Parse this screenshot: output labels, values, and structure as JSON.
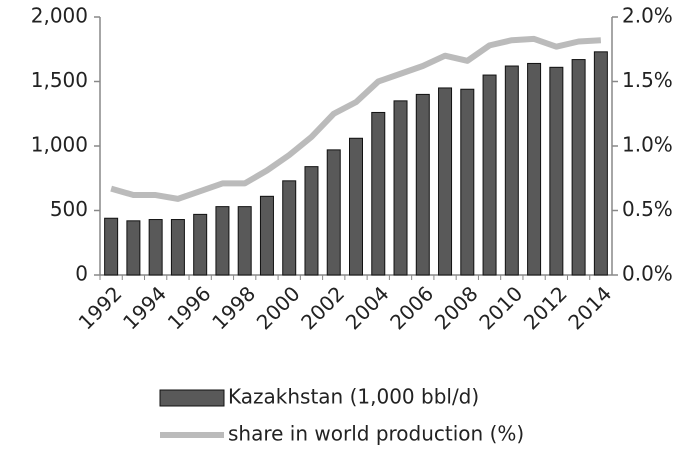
{
  "chart_data": {
    "type": "bar",
    "categories": [
      "1992",
      null,
      "1994",
      null,
      "1996",
      null,
      "1998",
      null,
      "2000",
      null,
      "2002",
      null,
      "2004",
      null,
      "2006",
      null,
      "2008",
      null,
      "2010",
      null,
      "2012",
      null,
      "2014"
    ],
    "series": [
      {
        "name": "Kazakhstan (1,000 bbl/d)",
        "type": "bar",
        "color": "#595959",
        "values": [
          440,
          420,
          430,
          430,
          470,
          530,
          530,
          610,
          730,
          840,
          970,
          1060,
          1260,
          1350,
          1400,
          1450,
          1440,
          1550,
          1620,
          1640,
          1610,
          1670,
          1730
        ]
      },
      {
        "name": "share in world production (%)",
        "type": "line",
        "axis": "y2",
        "color": "#bbbbbb",
        "values": [
          0.67,
          0.62,
          0.62,
          0.59,
          0.65,
          0.71,
          0.71,
          0.81,
          0.93,
          1.07,
          1.25,
          1.34,
          1.5,
          1.56,
          1.62,
          1.7,
          1.66,
          1.78,
          1.82,
          1.83,
          1.77,
          1.81,
          1.82
        ]
      }
    ],
    "ylim": [
      0,
      2000
    ],
    "yticks": [
      0,
      {
        "value": 500,
        "label": "500"
      },
      {
        "value": 1000,
        "label": "1,000"
      },
      {
        "value": 1500,
        "label": "1,500"
      },
      {
        "value": 2000,
        "label": "2,000"
      }
    ],
    "y2lim": [
      0,
      2
    ],
    "y2ticks": [
      {
        "value": 0,
        "label": "0.0%"
      },
      {
        "value": 0.5,
        "label": "0.5%"
      },
      {
        "value": 1,
        "label": "1.0%"
      },
      {
        "value": 1.5,
        "label": "1.5%"
      },
      {
        "value": 2,
        "label": "2.0%"
      }
    ],
    "grid": false,
    "legend": "bottom"
  }
}
